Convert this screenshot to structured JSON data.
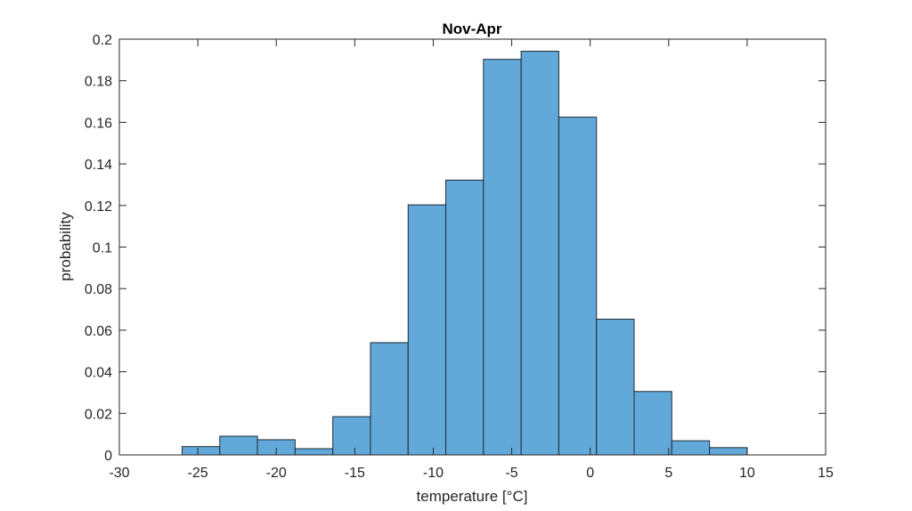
{
  "chart_data": {
    "type": "bar",
    "title": "Nov-Apr",
    "xlabel": "temperature [°C]",
    "ylabel": "probability",
    "xlim": [
      -30,
      15
    ],
    "ylim": [
      0,
      0.2
    ],
    "xticks": [
      "-30",
      "-25",
      "-20",
      "-15",
      "-10",
      "-5",
      "0",
      "5",
      "10",
      "15"
    ],
    "yticks": [
      "0",
      "0.02",
      "0.04",
      "0.06",
      "0.08",
      "0.1",
      "0.12",
      "0.14",
      "0.16",
      "0.18",
      "0.2"
    ],
    "grid": false,
    "bin_edges": [
      -26.0,
      -23.6,
      -21.2,
      -18.8,
      -16.4,
      -14.0,
      -11.6,
      -9.2,
      -6.8,
      -4.4,
      -2.0,
      0.4,
      2.8,
      5.2,
      7.6,
      10.0
    ],
    "values": [
      0.004,
      0.009,
      0.0073,
      0.003,
      0.0184,
      0.054,
      0.1203,
      0.1322,
      0.1903,
      0.1942,
      0.1625,
      0.0653,
      0.0305,
      0.0068,
      0.0035
    ],
    "colors": {
      "bar_fill": "#62a8d8",
      "bar_edge": "#1f2a36",
      "axis": "#262626"
    }
  }
}
